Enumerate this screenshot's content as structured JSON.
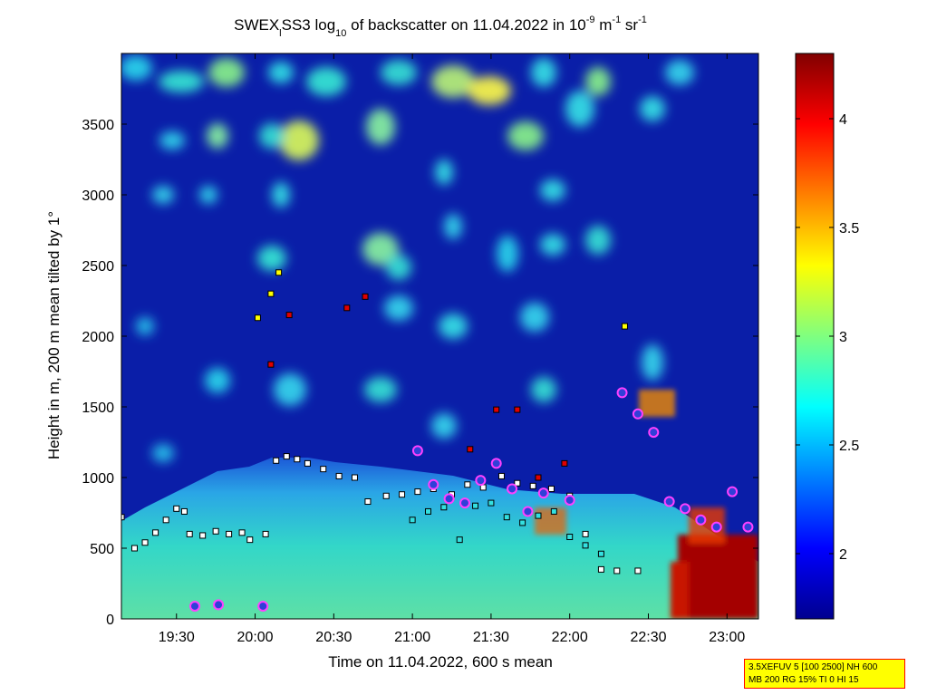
{
  "chart_data": {
    "type": "heatmap",
    "title": {
      "prefix": "SWEX",
      "sub_after_prefix": "l",
      "mid": "SS3 log",
      "sub_log": "10",
      "mid2": " of backscatter on 11.04.2022 in 10",
      "sup_exp": "-9",
      "unit_m": " m",
      "sup_m": "-1",
      "unit_sr": " sr",
      "sup_sr": "-1"
    },
    "xlabel": "Time on 11.04.2022, 600 s mean",
    "ylabel": "Height in m, 200 m mean tilted by 1°",
    "x_tick_labels": [
      "19:30",
      "20:00",
      "20:30",
      "21:00",
      "21:30",
      "22:00",
      "22:30",
      "23:00"
    ],
    "x_tick_minutes": [
      1170,
      1200,
      1230,
      1260,
      1290,
      1320,
      1350,
      1380
    ],
    "x_range_minutes": [
      1149,
      1392
    ],
    "y_ticks": [
      0,
      500,
      1000,
      1500,
      2000,
      2500,
      3000,
      3500
    ],
    "y_range": [
      0,
      4000
    ],
    "colorbar": {
      "ticks": [
        2,
        2.5,
        3,
        3.5,
        4
      ],
      "tick_labels": [
        "2",
        "2.5",
        "3",
        "3.5",
        "4"
      ],
      "range": [
        1.7,
        4.3
      ],
      "colormap": "jet"
    },
    "colors": {
      "background_field": "#0a1ea8",
      "jet_dark_blue": "#00008f",
      "jet_dark_red": "#800000"
    },
    "cloud_base_layers": [
      {
        "name": "white squares",
        "points": [
          [
            1149,
            720
          ],
          [
            1154,
            500
          ],
          [
            1158,
            540
          ],
          [
            1162,
            610
          ],
          [
            1166,
            700
          ],
          [
            1170,
            780
          ],
          [
            1173,
            760
          ],
          [
            1175,
            600
          ],
          [
            1180,
            590
          ],
          [
            1185,
            620
          ],
          [
            1190,
            600
          ],
          [
            1195,
            610
          ],
          [
            1198,
            560
          ],
          [
            1204,
            600
          ],
          [
            1208,
            1120
          ],
          [
            1212,
            1150
          ],
          [
            1216,
            1130
          ],
          [
            1220,
            1100
          ],
          [
            1226,
            1060
          ],
          [
            1232,
            1010
          ],
          [
            1238,
            1000
          ],
          [
            1243,
            830
          ],
          [
            1250,
            870
          ],
          [
            1256,
            880
          ],
          [
            1262,
            900
          ],
          [
            1268,
            920
          ],
          [
            1275,
            880
          ],
          [
            1281,
            950
          ],
          [
            1287,
            930
          ],
          [
            1294,
            1010
          ],
          [
            1300,
            960
          ],
          [
            1306,
            940
          ],
          [
            1313,
            920
          ],
          [
            1320,
            870
          ],
          [
            1326,
            600
          ],
          [
            1332,
            350
          ],
          [
            1338,
            340
          ],
          [
            1346,
            340
          ]
        ]
      },
      {
        "name": "cyan squares",
        "points": [
          [
            1260,
            700
          ],
          [
            1266,
            760
          ],
          [
            1272,
            790
          ],
          [
            1278,
            560
          ],
          [
            1284,
            800
          ],
          [
            1290,
            820
          ],
          [
            1296,
            720
          ],
          [
            1302,
            680
          ],
          [
            1308,
            730
          ],
          [
            1314,
            760
          ],
          [
            1320,
            580
          ],
          [
            1326,
            520
          ],
          [
            1332,
            460
          ]
        ]
      },
      {
        "name": "red squares",
        "points": [
          [
            1206,
            1800
          ],
          [
            1213,
            2150
          ],
          [
            1235,
            2200
          ],
          [
            1242,
            2280
          ],
          [
            1282,
            1200
          ],
          [
            1292,
            1480
          ],
          [
            1300,
            1480
          ],
          [
            1308,
            1000
          ],
          [
            1318,
            1100
          ]
        ]
      },
      {
        "name": "yellow squares",
        "points": [
          [
            1201,
            2130
          ],
          [
            1206,
            2300
          ],
          [
            1209,
            2450
          ],
          [
            1341,
            2070
          ]
        ]
      },
      {
        "name": "purple circles",
        "points": [
          [
            1177,
            90
          ],
          [
            1186,
            100
          ],
          [
            1203,
            90
          ],
          [
            1262,
            1190
          ],
          [
            1268,
            950
          ],
          [
            1274,
            850
          ],
          [
            1280,
            820
          ],
          [
            1286,
            980
          ],
          [
            1292,
            1100
          ],
          [
            1298,
            920
          ],
          [
            1304,
            760
          ],
          [
            1310,
            890
          ],
          [
            1320,
            840
          ],
          [
            1340,
            1600
          ],
          [
            1346,
            1450
          ],
          [
            1352,
            1320
          ],
          [
            1358,
            830
          ],
          [
            1364,
            780
          ],
          [
            1370,
            700
          ],
          [
            1376,
            650
          ],
          [
            1382,
            900
          ],
          [
            1388,
            650
          ]
        ]
      }
    ]
  },
  "info_box": {
    "line1": "3.5XEFUV 5 [100 2500] NH 600",
    "line2": "MB 200 RG 15% TI 0 HI 15"
  }
}
